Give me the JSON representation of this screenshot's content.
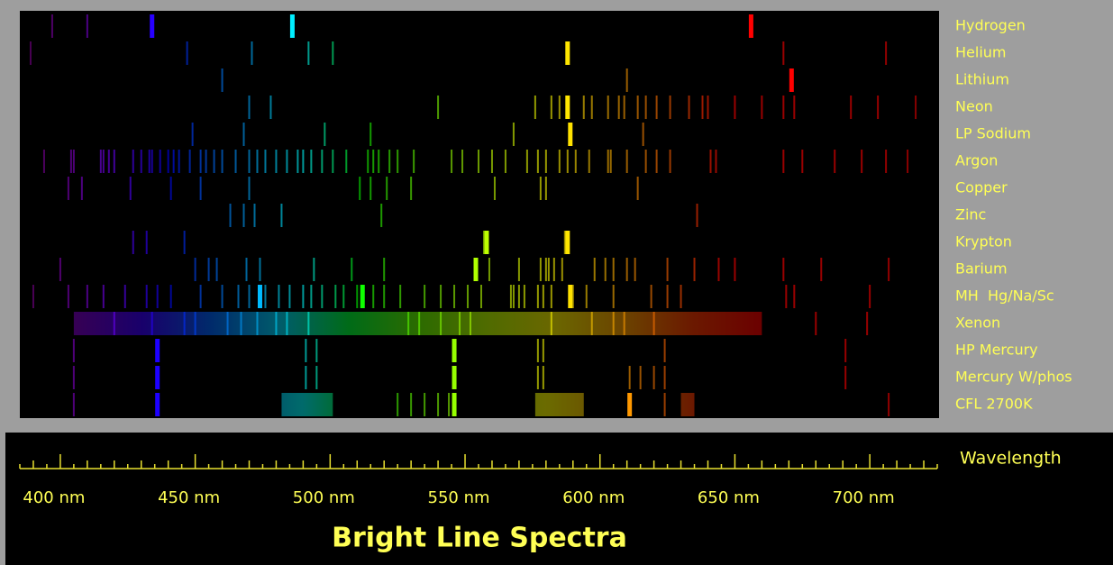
{
  "chart_data": {
    "type": "spectra",
    "title": "Bright Line Spectra",
    "x_label": "Wavelength",
    "xlim": [
      385,
      725
    ],
    "xticks": [
      {
        "value": 400,
        "label": "400 nm"
      },
      {
        "value": 450,
        "label": "450 nm"
      },
      {
        "value": 500,
        "label": "500 nm"
      },
      {
        "value": 550,
        "label": "550 nm"
      },
      {
        "value": 600,
        "label": "600 nm"
      },
      {
        "value": 650,
        "label": "650 nm"
      },
      {
        "value": 700,
        "label": "700 nm"
      }
    ],
    "minor_xticks": [
      385,
      390,
      395,
      405,
      410,
      415,
      420,
      425,
      430,
      435,
      440,
      445,
      455,
      460,
      465,
      470,
      475,
      480,
      485,
      490,
      495,
      505,
      510,
      515,
      520,
      525,
      530,
      535,
      540,
      545,
      555,
      560,
      565,
      570,
      575,
      580,
      585,
      590,
      595,
      605,
      610,
      615,
      620,
      625,
      630,
      635,
      640,
      645,
      655,
      660,
      665,
      670,
      675,
      680,
      685,
      690,
      695,
      705,
      710,
      715,
      720,
      725
    ],
    "series": [
      {
        "name": "Hydrogen",
        "lines": [
          397,
          410
        ],
        "strong_lines": [
          434,
          486,
          656
        ],
        "bands": []
      },
      {
        "name": "Helium",
        "lines": [
          389,
          447,
          471,
          492,
          501,
          668,
          706
        ],
        "strong_lines": [
          588
        ],
        "bands": []
      },
      {
        "name": "Lithium",
        "lines": [
          460,
          610
        ],
        "strong_lines": [
          671
        ],
        "bands": []
      },
      {
        "name": "Neon",
        "lines": [
          470,
          478,
          540,
          576,
          582,
          585,
          594,
          597,
          603,
          607,
          609,
          614,
          617,
          621,
          626,
          633,
          638,
          640,
          650,
          660,
          668,
          672,
          693,
          703,
          717
        ],
        "strong_lines": [
          588
        ],
        "bands": []
      },
      {
        "name": "LP Sodium",
        "lines": [
          449,
          468,
          498,
          515,
          568,
          616
        ],
        "strong_lines": [
          589
        ],
        "bands": []
      },
      {
        "name": "Argon",
        "lines": [
          394,
          404,
          405,
          415,
          416,
          418,
          420,
          427,
          430,
          433,
          434,
          437,
          440,
          442,
          444,
          448,
          452,
          454,
          457,
          460,
          465,
          470,
          473,
          476,
          480,
          484,
          488,
          490,
          493,
          497,
          501,
          506,
          514,
          516,
          518,
          522,
          525,
          531,
          545,
          549,
          555,
          560,
          565,
          573,
          577,
          580,
          585,
          588,
          591,
          596,
          603,
          604,
          610,
          617,
          621,
          626,
          641,
          643,
          668,
          675,
          687,
          697,
          706,
          714
        ],
        "strong_lines": [],
        "bands": []
      },
      {
        "name": "Copper",
        "lines": [
          403,
          408,
          426,
          441,
          452,
          470,
          511,
          515,
          521,
          530,
          561,
          578,
          580,
          614
        ],
        "strong_lines": [],
        "bands": []
      },
      {
        "name": "Zinc",
        "lines": [
          463,
          468,
          472,
          482,
          519,
          636
        ],
        "strong_lines": [],
        "bands": []
      },
      {
        "name": "Krypton",
        "lines": [
          427,
          432,
          446,
          557,
          587
        ],
        "strong_lines": [
          558,
          588
        ],
        "bands": []
      },
      {
        "name": "Barium",
        "lines": [
          400,
          450,
          455,
          458,
          469,
          474,
          494,
          508,
          520,
          559,
          570,
          578,
          580,
          581,
          583,
          586,
          598,
          602,
          605,
          610,
          613,
          625,
          635,
          644,
          650,
          668,
          682,
          707
        ],
        "strong_lines": [
          554
        ],
        "bands": []
      },
      {
        "name": "MH  Hg/Na/Sc",
        "lines": [
          390,
          403,
          410,
          416,
          424,
          432,
          436,
          441,
          452,
          460,
          466,
          470,
          476,
          481,
          485,
          490,
          493,
          497,
          502,
          505,
          510,
          516,
          520,
          526,
          535,
          541,
          546,
          551,
          556,
          567,
          568,
          570,
          572,
          577,
          579,
          582,
          590,
          595,
          605,
          619,
          625,
          630,
          669,
          672,
          700
        ],
        "strong_lines": [
          474,
          512,
          589
        ],
        "bands": []
      },
      {
        "name": "Xenon",
        "lines": [
          420,
          434,
          446,
          450,
          462,
          467,
          473,
          480,
          484,
          492,
          529,
          533,
          541,
          548,
          552,
          582,
          597,
          605,
          609,
          620,
          680,
          699
        ],
        "strong_lines": [],
        "bands": [
          [
            405,
            660
          ]
        ]
      },
      {
        "name": "HP Mercury",
        "lines": [
          405,
          491,
          495,
          577,
          579,
          624,
          691
        ],
        "strong_lines": [
          436,
          546
        ],
        "bands": []
      },
      {
        "name": "Mercury W/phos",
        "lines": [
          405,
          491,
          495,
          577,
          579,
          611,
          615,
          620,
          624,
          691
        ],
        "strong_lines": [
          436,
          546
        ],
        "bands": []
      },
      {
        "name": "CFL 2700K",
        "lines": [
          405,
          525,
          530,
          535,
          540,
          544,
          624,
          707
        ],
        "strong_lines": [
          436,
          546,
          611
        ],
        "bands": [
          [
            482,
            501
          ],
          [
            576,
            594
          ],
          [
            630,
            635
          ]
        ]
      }
    ]
  }
}
